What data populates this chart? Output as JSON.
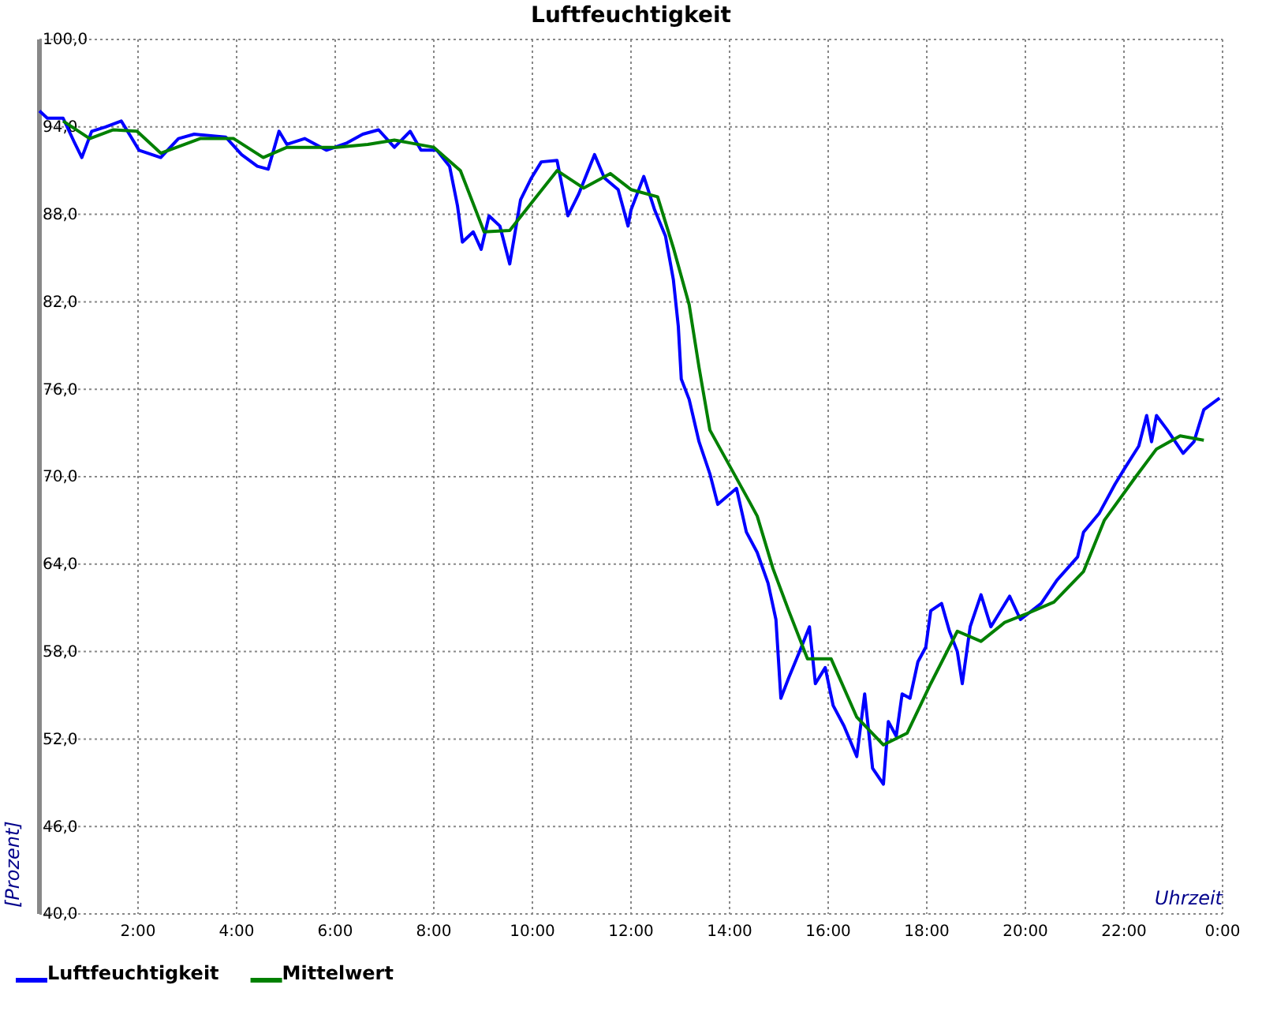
{
  "chart_data": {
    "type": "line",
    "title": "Luftfeuchtigkeit",
    "xlabel": "Uhrzeit",
    "ylabel": "[Prozent]",
    "xlim": [
      0,
      24
    ],
    "ylim": [
      40,
      100
    ],
    "xticks": [
      {
        "value": 0,
        "label": null
      },
      {
        "value": 2,
        "label": "2:00"
      },
      {
        "value": 4,
        "label": "4:00"
      },
      {
        "value": 6,
        "label": "6:00"
      },
      {
        "value": 8,
        "label": "8:00"
      },
      {
        "value": 10,
        "label": "10:00"
      },
      {
        "value": 12,
        "label": "12:00"
      },
      {
        "value": 14,
        "label": "14:00"
      },
      {
        "value": 16,
        "label": "16:00"
      },
      {
        "value": 18,
        "label": "18:00"
      },
      {
        "value": 20,
        "label": "20:00"
      },
      {
        "value": 22,
        "label": "22:00"
      },
      {
        "value": 24,
        "label": "0:00"
      }
    ],
    "yticks": [
      {
        "value": 40,
        "label": "40,0"
      },
      {
        "value": 46,
        "label": "46,0"
      },
      {
        "value": 52,
        "label": "52,0"
      },
      {
        "value": 58,
        "label": "58,0"
      },
      {
        "value": 64,
        "label": "64,0"
      },
      {
        "value": 70,
        "label": "70,0"
      },
      {
        "value": 76,
        "label": "76,0"
      },
      {
        "value": 82,
        "label": "82,0"
      },
      {
        "value": 88,
        "label": "88,0"
      },
      {
        "value": 94,
        "label": "94,0"
      },
      {
        "value": 100,
        "label": "100,0"
      }
    ],
    "grid": true,
    "legend": "bottom left",
    "marker": "none",
    "line_style": "solid",
    "series": [
      {
        "name": "Luftfeuchtigkeit",
        "color": "#0000ff",
        "x": [
          0,
          0.16,
          0.48,
          0.7,
          0.86,
          1.06,
          1.34,
          1.66,
          1.86,
          2.02,
          2.46,
          2.82,
          3.14,
          3.78,
          4.1,
          4.42,
          4.64,
          4.86,
          5.02,
          5.38,
          5.82,
          6.24,
          6.56,
          6.88,
          7.2,
          7.52,
          7.74,
          8.06,
          8.32,
          8.48,
          8.58,
          8.8,
          8.96,
          9.12,
          9.34,
          9.54,
          9.76,
          9.98,
          10.18,
          10.5,
          10.72,
          10.94,
          11.26,
          11.46,
          11.74,
          11.94,
          12.0,
          12.26,
          12.48,
          12.7,
          12.86,
          12.96,
          13.02,
          13.18,
          13.38,
          13.6,
          13.76,
          14.14,
          14.34,
          14.56,
          14.78,
          14.94,
          15.04,
          15.2,
          15.42,
          15.62,
          15.74,
          15.94,
          16.1,
          16.32,
          16.58,
          16.74,
          16.9,
          17.12,
          17.22,
          17.38,
          17.5,
          17.66,
          17.82,
          17.98,
          18.08,
          18.3,
          18.46,
          18.62,
          18.72,
          18.88,
          19.1,
          19.3,
          19.68,
          19.9,
          20.32,
          20.64,
          21.06,
          21.18,
          21.5,
          21.82,
          22.02,
          22.3,
          22.46,
          22.56,
          22.66,
          22.88,
          23.2,
          23.42,
          23.62,
          23.94
        ],
        "values": [
          95.1,
          94.6,
          94.6,
          93.0,
          91.9,
          93.7,
          94.0,
          94.4,
          93.3,
          92.4,
          91.9,
          93.2,
          93.5,
          93.3,
          92.1,
          91.3,
          91.1,
          93.7,
          92.8,
          93.2,
          92.4,
          92.9,
          93.5,
          93.8,
          92.6,
          93.7,
          92.4,
          92.4,
          91.3,
          88.6,
          86.1,
          86.8,
          85.6,
          87.9,
          87.2,
          84.6,
          89.0,
          90.5,
          91.6,
          91.7,
          87.9,
          89.4,
          92.1,
          90.5,
          89.7,
          87.2,
          88.3,
          90.6,
          88.3,
          86.5,
          83.5,
          80.3,
          76.7,
          75.3,
          72.4,
          70.2,
          68.1,
          69.2,
          66.2,
          64.8,
          62.7,
          60.2,
          54.8,
          56.2,
          58.0,
          59.7,
          55.8,
          56.9,
          54.3,
          52.9,
          50.8,
          55.1,
          50.0,
          48.9,
          53.2,
          52.2,
          55.1,
          54.8,
          57.3,
          58.3,
          60.8,
          61.3,
          59.4,
          58.0,
          55.8,
          59.7,
          61.9,
          59.7,
          61.8,
          60.2,
          61.3,
          62.9,
          64.5,
          66.2,
          67.5,
          69.5,
          70.6,
          72.1,
          74.2,
          72.4,
          74.2,
          73.2,
          71.6,
          72.4,
          74.6,
          75.4
        ]
      },
      {
        "name": "Mittelwert",
        "color": "#008000",
        "x": [
          0.48,
          1.02,
          1.5,
          1.98,
          2.46,
          3.26,
          3.94,
          4.54,
          5.02,
          6.02,
          6.66,
          7.2,
          7.52,
          8.0,
          8.54,
          9.02,
          9.54,
          10.5,
          11.04,
          11.58,
          12.0,
          12.54,
          12.86,
          13.18,
          13.38,
          13.6,
          14.4,
          14.56,
          14.88,
          15.2,
          15.58,
          16.06,
          16.58,
          17.12,
          17.6,
          18.08,
          18.62,
          19.1,
          19.58,
          20.1,
          20.58,
          21.18,
          21.6,
          22.24,
          22.66,
          23.14,
          23.62
        ],
        "values": [
          94.4,
          93.2,
          93.8,
          93.7,
          92.2,
          93.2,
          93.2,
          91.9,
          92.6,
          92.6,
          92.8,
          93.1,
          92.9,
          92.6,
          91.0,
          86.8,
          86.9,
          91.0,
          89.8,
          90.8,
          89.7,
          89.2,
          85.7,
          81.8,
          77.5,
          73.2,
          68.3,
          67.3,
          63.7,
          60.8,
          57.5,
          57.5,
          53.5,
          51.6,
          52.4,
          55.8,
          59.4,
          58.7,
          60.0,
          60.7,
          61.4,
          63.5,
          67.0,
          70.0,
          71.9,
          72.8,
          72.5
        ]
      }
    ]
  }
}
